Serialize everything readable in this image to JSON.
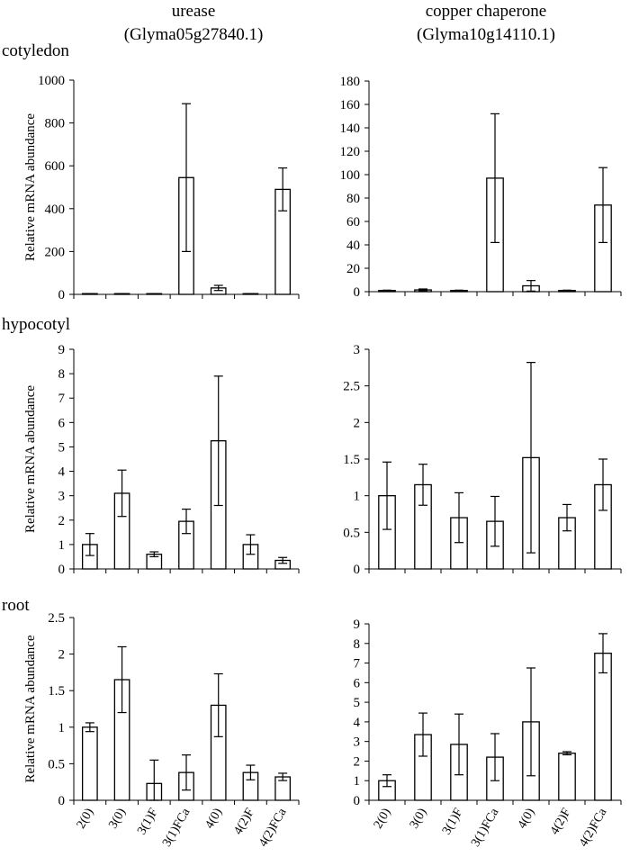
{
  "columns": [
    {
      "gene": "urease",
      "id": "(Glyma05g27840.1)"
    },
    {
      "gene": "copper chaperone",
      "id": "(Glyma10g14110.1)"
    }
  ],
  "rows": [
    "cotyledon",
    "hypocotyl",
    "root"
  ],
  "ylabel": "Relative mRNA abundance",
  "categories": [
    "2(0)",
    "3(0)",
    "3(1)F",
    "3(1)FCa",
    "4(0)",
    "4(2)F",
    "4(2)FCa"
  ],
  "chart_data": [
    {
      "type": "bar",
      "panel": "cotyledon-urease",
      "ylabel": "Relative mRNA abundance",
      "ylim": [
        0,
        1000
      ],
      "yticks": [
        0,
        200,
        400,
        600,
        800,
        1000
      ],
      "categories": [
        "2(0)",
        "3(0)",
        "3(1)F",
        "3(1)FCa",
        "4(0)",
        "4(2)F",
        "4(2)FCa"
      ],
      "values": [
        2,
        2,
        2,
        545,
        30,
        2,
        490
      ],
      "errors": [
        1,
        1,
        1,
        345,
        12,
        1,
        100
      ]
    },
    {
      "type": "bar",
      "panel": "cotyledon-copper-chaperone",
      "ylabel": "",
      "ylim": [
        0,
        180
      ],
      "yticks": [
        0,
        20,
        40,
        60,
        80,
        100,
        120,
        140,
        160,
        180
      ],
      "categories": [
        "2(0)",
        "3(0)",
        "3(1)F",
        "3(1)FCa",
        "4(0)",
        "4(2)F",
        "4(2)FCa"
      ],
      "values": [
        1,
        1.5,
        1,
        97,
        5,
        1,
        74
      ],
      "errors": [
        0.3,
        0.8,
        0.3,
        55,
        4.5,
        0.3,
        32
      ]
    },
    {
      "type": "bar",
      "panel": "hypocotyl-urease",
      "ylabel": "Relative mRNA abundance",
      "ylim": [
        0,
        9
      ],
      "yticks": [
        0,
        1,
        2,
        3,
        4,
        5,
        6,
        7,
        8,
        9
      ],
      "categories": [
        "2(0)",
        "3(0)",
        "3(1)F",
        "3(1)FCa",
        "4(0)",
        "4(2)F",
        "4(2)FCa"
      ],
      "values": [
        1,
        3.1,
        0.6,
        1.95,
        5.25,
        1,
        0.35
      ],
      "errors": [
        0.45,
        0.95,
        0.1,
        0.5,
        2.65,
        0.4,
        0.12
      ]
    },
    {
      "type": "bar",
      "panel": "hypocotyl-copper-chaperone",
      "ylabel": "",
      "ylim": [
        0,
        3
      ],
      "yticks": [
        0,
        0.5,
        1,
        1.5,
        2,
        2.5,
        3
      ],
      "categories": [
        "2(0)",
        "3(0)",
        "3(1)F",
        "3(1)FCa",
        "4(0)",
        "4(2)F",
        "4(2)FCa"
      ],
      "values": [
        1,
        1.15,
        0.7,
        0.65,
        1.52,
        0.7,
        1.15
      ],
      "errors": [
        0.46,
        0.28,
        0.34,
        0.34,
        1.3,
        0.18,
        0.35
      ]
    },
    {
      "type": "bar",
      "panel": "root-urease",
      "ylabel": "Relative mRNA abundance",
      "ylim": [
        0,
        2.5
      ],
      "yticks": [
        0,
        0.5,
        1,
        1.5,
        2,
        2.5
      ],
      "categories": [
        "2(0)",
        "3(0)",
        "3(1)F",
        "3(1)FCa",
        "4(0)",
        "4(2)F",
        "4(2)FCa"
      ],
      "values": [
        1,
        1.65,
        0.23,
        0.38,
        1.3,
        0.38,
        0.32
      ],
      "errors": [
        0.06,
        0.45,
        0.32,
        0.24,
        0.43,
        0.1,
        0.05
      ]
    },
    {
      "type": "bar",
      "panel": "root-copper-chaperone",
      "ylabel": "",
      "ylim": [
        0,
        9
      ],
      "yticks": [
        0,
        1,
        2,
        3,
        4,
        5,
        6,
        7,
        8,
        9
      ],
      "categories": [
        "2(0)",
        "3(0)",
        "3(1)F",
        "3(1)FCa",
        "4(0)",
        "4(2)F",
        "4(2)FCa"
      ],
      "values": [
        1,
        3.35,
        2.85,
        2.2,
        4,
        2.4,
        7.5
      ],
      "errors": [
        0.3,
        1.1,
        1.55,
        1.2,
        2.75,
        0.08,
        1.0
      ]
    }
  ]
}
